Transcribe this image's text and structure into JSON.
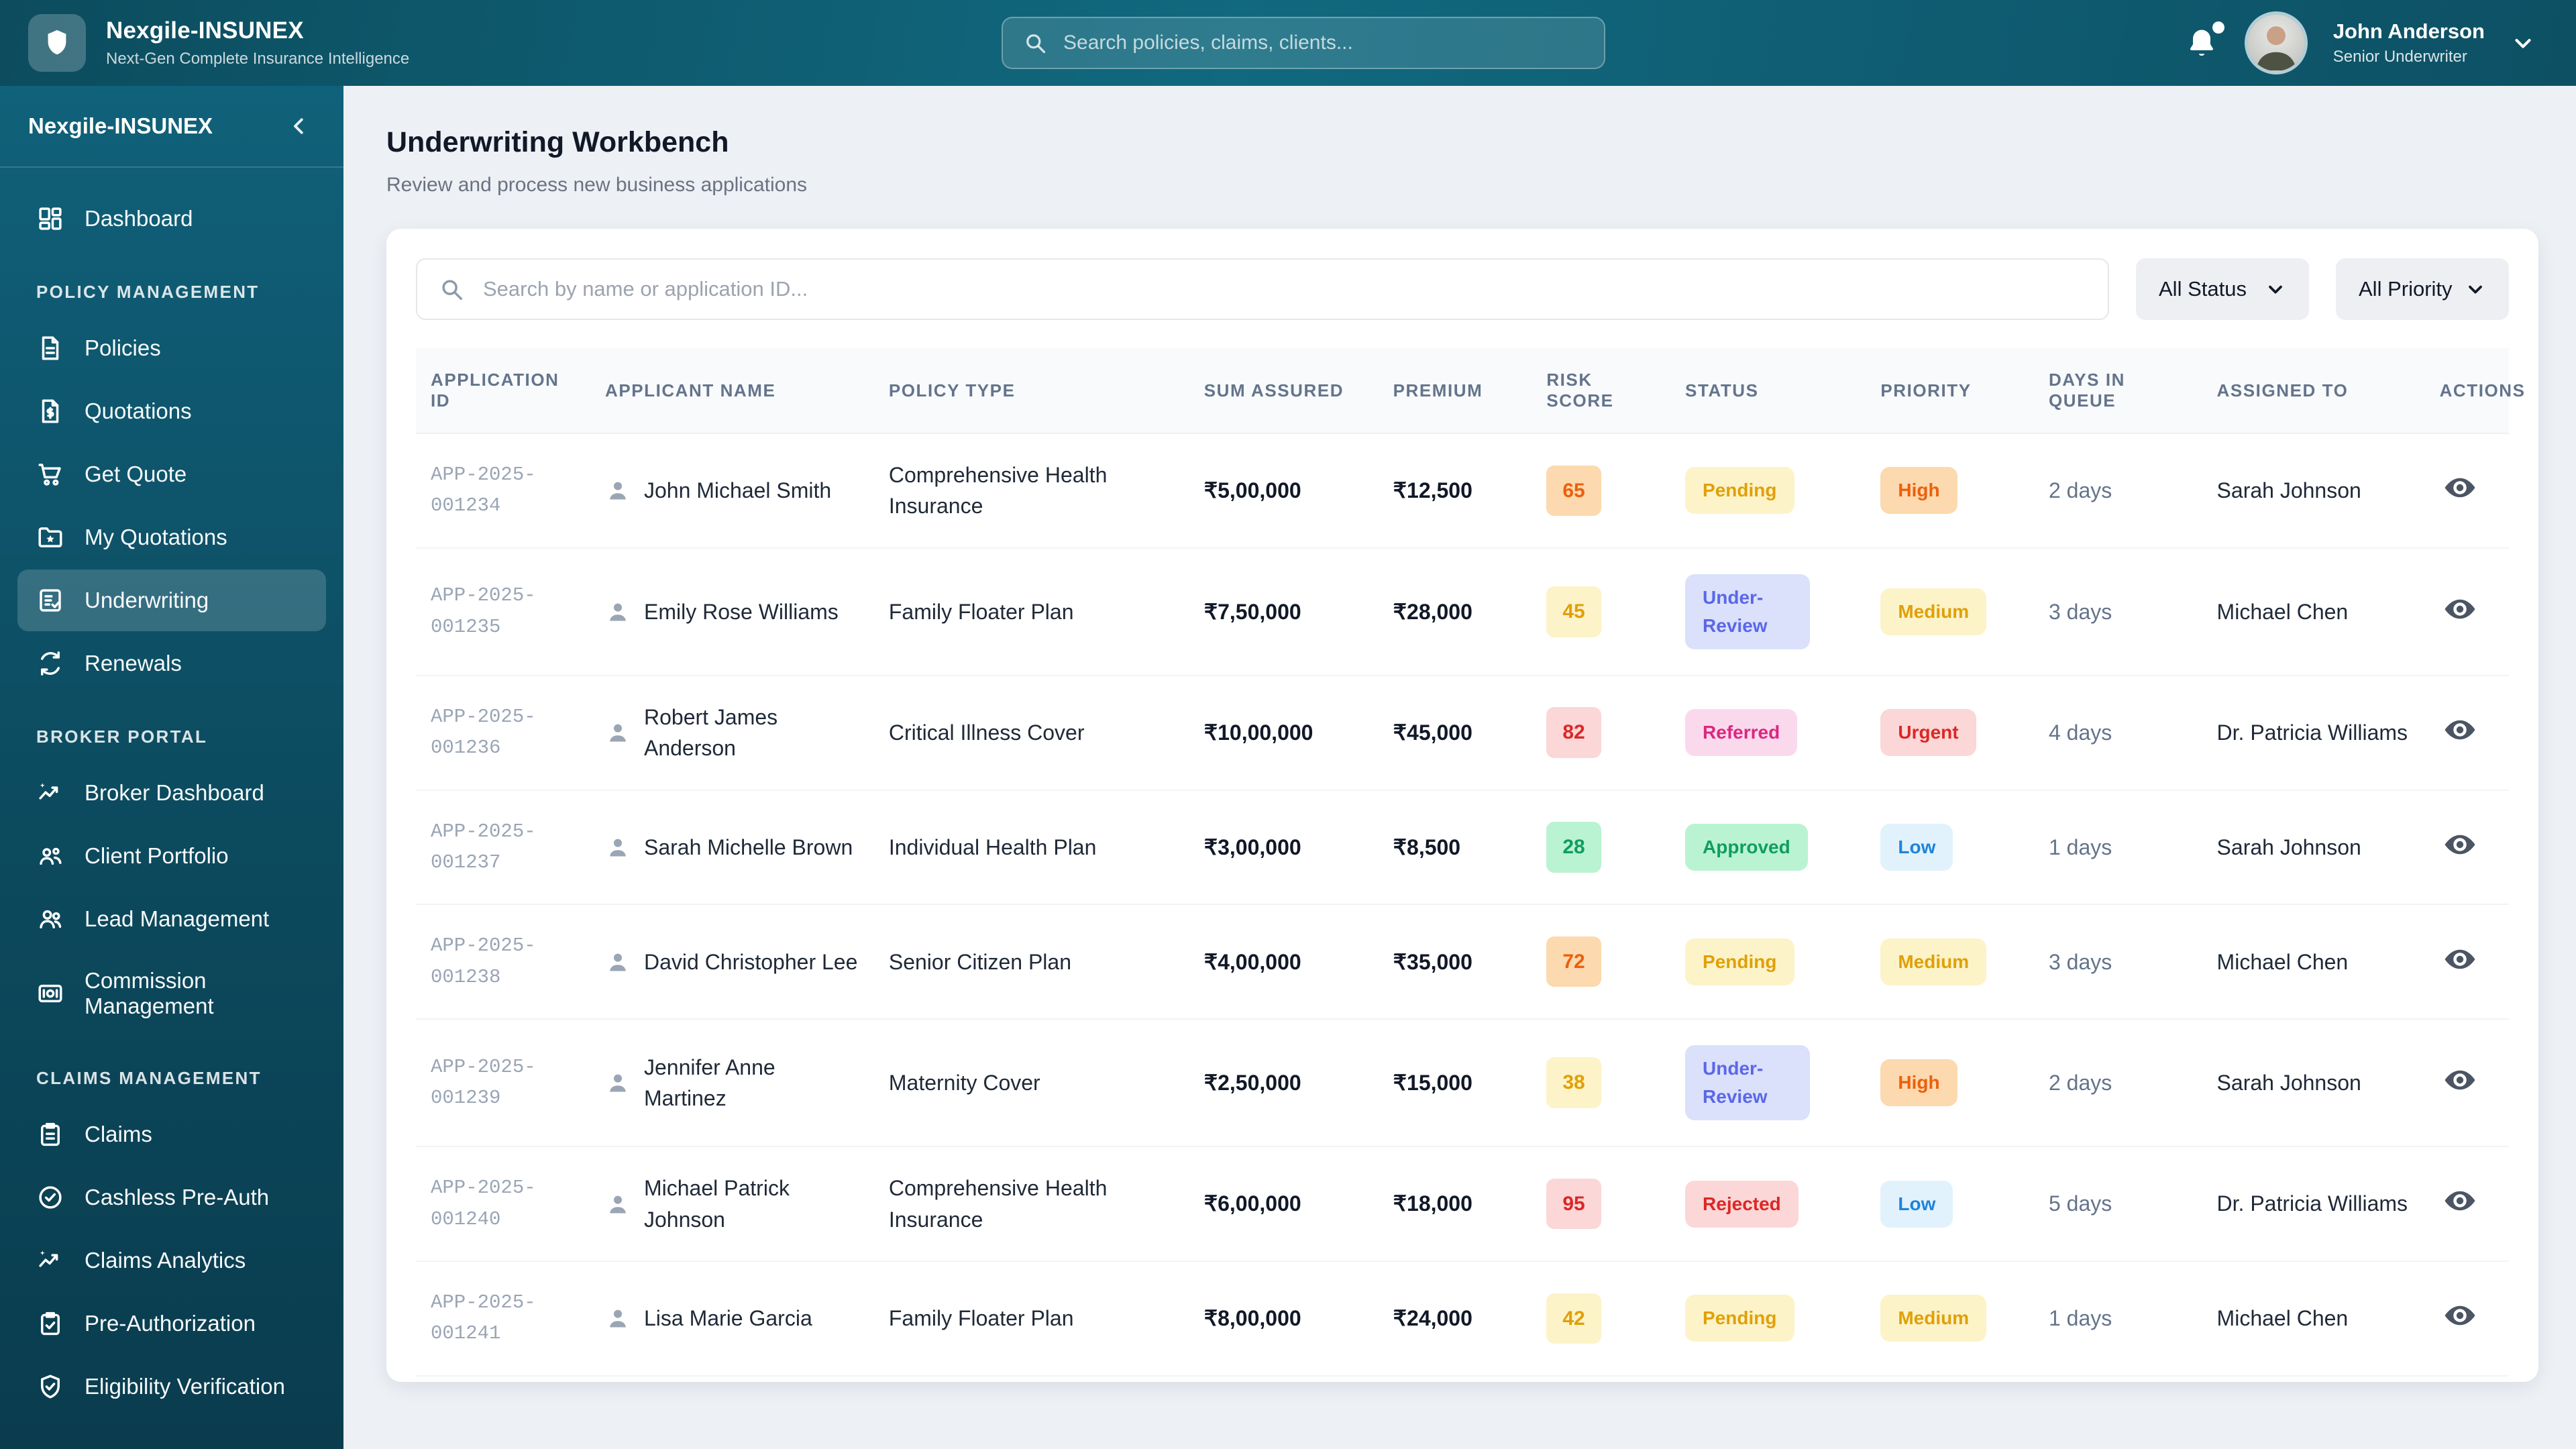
{
  "brand": {
    "name": "Nexgile-INSUNEX",
    "tagline": "Next-Gen Complete Insurance Intelligence"
  },
  "topbar": {
    "search_placeholder": "Search policies, claims, clients...",
    "bell_icon": "bell-icon",
    "notification_dot": true,
    "user": {
      "name": "John Anderson",
      "role": "Senior Underwriter"
    }
  },
  "sidebar": {
    "title": "Nexgile-INSUNEX",
    "collapse_icon": "chevron-left-icon",
    "sections": [
      {
        "label": "",
        "items": [
          {
            "label": "Dashboard",
            "icon": "dashboard",
            "active": false
          }
        ]
      },
      {
        "label": "POLICY MANAGEMENT",
        "items": [
          {
            "label": "Policies",
            "icon": "document",
            "active": false
          },
          {
            "label": "Quotations",
            "icon": "document-dollar",
            "active": false
          },
          {
            "label": "Get Quote",
            "icon": "cart",
            "active": false
          },
          {
            "label": "My Quotations",
            "icon": "folder-star",
            "active": false
          },
          {
            "label": "Underwriting",
            "icon": "list-check",
            "active": true
          },
          {
            "label": "Renewals",
            "icon": "refresh",
            "active": false
          }
        ]
      },
      {
        "label": "BROKER PORTAL",
        "items": [
          {
            "label": "Broker Dashboard",
            "icon": "trend-sparkle",
            "active": false
          },
          {
            "label": "Client Portfolio",
            "icon": "users-three",
            "active": false
          },
          {
            "label": "Lead Management",
            "icon": "users-two",
            "active": false
          },
          {
            "label": "Commission Management",
            "icon": "card",
            "active": false
          }
        ]
      },
      {
        "label": "CLAIMS MANAGEMENT",
        "items": [
          {
            "label": "Claims",
            "icon": "clipboard",
            "active": false
          },
          {
            "label": "Cashless Pre-Auth",
            "icon": "badge-check",
            "active": false
          },
          {
            "label": "Claims Analytics",
            "icon": "trend-sparkle",
            "active": false
          },
          {
            "label": "Pre-Authorization",
            "icon": "clipboard-check",
            "active": false
          },
          {
            "label": "Eligibility Verification",
            "icon": "shield-check",
            "active": false
          }
        ]
      }
    ]
  },
  "page": {
    "title": "Underwriting Workbench",
    "subtitle": "Review and process new business applications"
  },
  "filters": {
    "search_placeholder": "Search by name or application ID...",
    "status": "All Status",
    "priority": "All Priority"
  },
  "table": {
    "columns": [
      "APPLICATION ID",
      "APPLICANT NAME",
      "POLICY TYPE",
      "SUM ASSURED",
      "PREMIUM",
      "RISK SCORE",
      "STATUS",
      "PRIORITY",
      "DAYS IN QUEUE",
      "ASSIGNED TO",
      "ACTIONS"
    ],
    "rows": [
      {
        "application_id": "APP-2025-001234",
        "applicant": "John Michael Smith",
        "policy_type": "Comprehensive Health Insurance",
        "sum_assured": "₹5,00,000",
        "premium": "₹12,500",
        "risk_score": "65",
        "risk_variant": "orange",
        "status": "Pending",
        "status_variant": "yellow",
        "priority": "High",
        "priority_variant": "orange",
        "days_in_queue": "2 days",
        "assigned_to": "Sarah Johnson"
      },
      {
        "application_id": "APP-2025-001235",
        "applicant": "Emily Rose Williams",
        "policy_type": "Family Floater Plan",
        "sum_assured": "₹7,50,000",
        "premium": "₹28,000",
        "risk_score": "45",
        "risk_variant": "yellow",
        "status": "Under-Review",
        "status_variant": "indigo",
        "priority": "Medium",
        "priority_variant": "yellow",
        "days_in_queue": "3 days",
        "assigned_to": "Michael Chen"
      },
      {
        "application_id": "APP-2025-001236",
        "applicant": "Robert James Anderson",
        "policy_type": "Critical Illness Cover",
        "sum_assured": "₹10,00,000",
        "premium": "₹45,000",
        "risk_score": "82",
        "risk_variant": "red",
        "status": "Referred",
        "status_variant": "pink",
        "priority": "Urgent",
        "priority_variant": "red",
        "days_in_queue": "4 days",
        "assigned_to": "Dr. Patricia Williams"
      },
      {
        "application_id": "APP-2025-001237",
        "applicant": "Sarah Michelle Brown",
        "policy_type": "Individual Health Plan",
        "sum_assured": "₹3,00,000",
        "premium": "₹8,500",
        "risk_score": "28",
        "risk_variant": "green",
        "status": "Approved",
        "status_variant": "green",
        "priority": "Low",
        "priority_variant": "blue",
        "days_in_queue": "1 days",
        "assigned_to": "Sarah Johnson"
      },
      {
        "application_id": "APP-2025-001238",
        "applicant": "David Christopher Lee",
        "policy_type": "Senior Citizen Plan",
        "sum_assured": "₹4,00,000",
        "premium": "₹35,000",
        "risk_score": "72",
        "risk_variant": "orange",
        "status": "Pending",
        "status_variant": "yellow",
        "priority": "Medium",
        "priority_variant": "yellow",
        "days_in_queue": "3 days",
        "assigned_to": "Michael Chen"
      },
      {
        "application_id": "APP-2025-001239",
        "applicant": "Jennifer Anne Martinez",
        "policy_type": "Maternity Cover",
        "sum_assured": "₹2,50,000",
        "premium": "₹15,000",
        "risk_score": "38",
        "risk_variant": "yellow",
        "status": "Under-Review",
        "status_variant": "indigo",
        "priority": "High",
        "priority_variant": "orange",
        "days_in_queue": "2 days",
        "assigned_to": "Sarah Johnson"
      },
      {
        "application_id": "APP-2025-001240",
        "applicant": "Michael Patrick Johnson",
        "policy_type": "Comprehensive Health Insurance",
        "sum_assured": "₹6,00,000",
        "premium": "₹18,000",
        "risk_score": "95",
        "risk_variant": "red",
        "status": "Rejected",
        "status_variant": "red",
        "priority": "Low",
        "priority_variant": "blue",
        "days_in_queue": "5 days",
        "assigned_to": "Dr. Patricia Williams"
      },
      {
        "application_id": "APP-2025-001241",
        "applicant": "Lisa Marie Garcia",
        "policy_type": "Family Floater Plan",
        "sum_assured": "₹8,00,000",
        "premium": "₹24,000",
        "risk_score": "42",
        "risk_variant": "yellow",
        "status": "Pending",
        "status_variant": "yellow",
        "priority": "Medium",
        "priority_variant": "yellow",
        "days_in_queue": "1 days",
        "assigned_to": "Michael Chen"
      }
    ]
  },
  "colors": {
    "header_teal_dark": "#0c4c5e",
    "header_teal_light": "#11697f",
    "sidebar_top": "#10617a",
    "sidebar_bottom": "#0a3c4e",
    "active_item_bg": "rgba(255,255,255,0.17)",
    "page_bg": "#edf0f5",
    "card_bg": "#ffffff",
    "badge_palette": {
      "yellow": {
        "bg": "#fdf3c8",
        "fg": "#e0a008"
      },
      "orange": {
        "bg": "#fcd9ae",
        "fg": "#ec5f0d"
      },
      "red": {
        "bg": "#fbd7d7",
        "fg": "#dc2727"
      },
      "green": {
        "bg": "#baf3d1",
        "fg": "#0f9d63"
      },
      "indigo": {
        "bg": "#dbe1fb",
        "fg": "#5a67e9"
      },
      "pink": {
        "bg": "#fbd9ec",
        "fg": "#db2780"
      },
      "blue": {
        "bg": "#e1f2fd",
        "fg": "#1d84da"
      }
    }
  }
}
